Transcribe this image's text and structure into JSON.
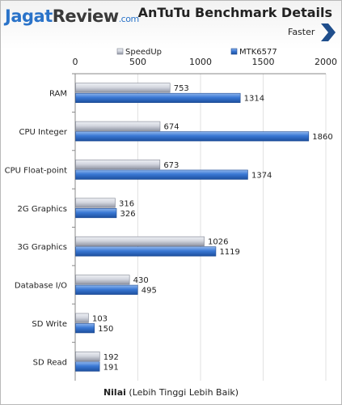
{
  "logo": {
    "part1": "Jagat",
    "part2": "Review",
    "part3": ".com"
  },
  "faster_label": "Faster",
  "colors": {
    "speedup": "#b8bcc8",
    "mtk": "#3a78d4"
  },
  "chart_data": {
    "type": "bar",
    "orientation": "horizontal",
    "title": "AnTuTu Benchmark Details",
    "categories": [
      "RAM",
      "CPU Integer",
      "CPU Float-point",
      "2G Graphics",
      "3G Graphics",
      "Database I/O",
      "SD Write",
      "SD Read"
    ],
    "series": [
      {
        "name": "SpeedUp",
        "values": [
          753,
          674,
          673,
          316,
          1026,
          430,
          103,
          192
        ]
      },
      {
        "name": "MTK6577",
        "values": [
          1314,
          1860,
          1374,
          326,
          1119,
          495,
          150,
          191
        ]
      }
    ],
    "xlabel_bold": "Nilai",
    "xlabel_rest": " (Lebih Tinggi Lebih Baik)",
    "xlim": [
      0,
      2000
    ],
    "ticks": [
      "0",
      "500",
      "1000",
      "1500",
      "2000"
    ],
    "grid": true,
    "legend_position": "top"
  }
}
